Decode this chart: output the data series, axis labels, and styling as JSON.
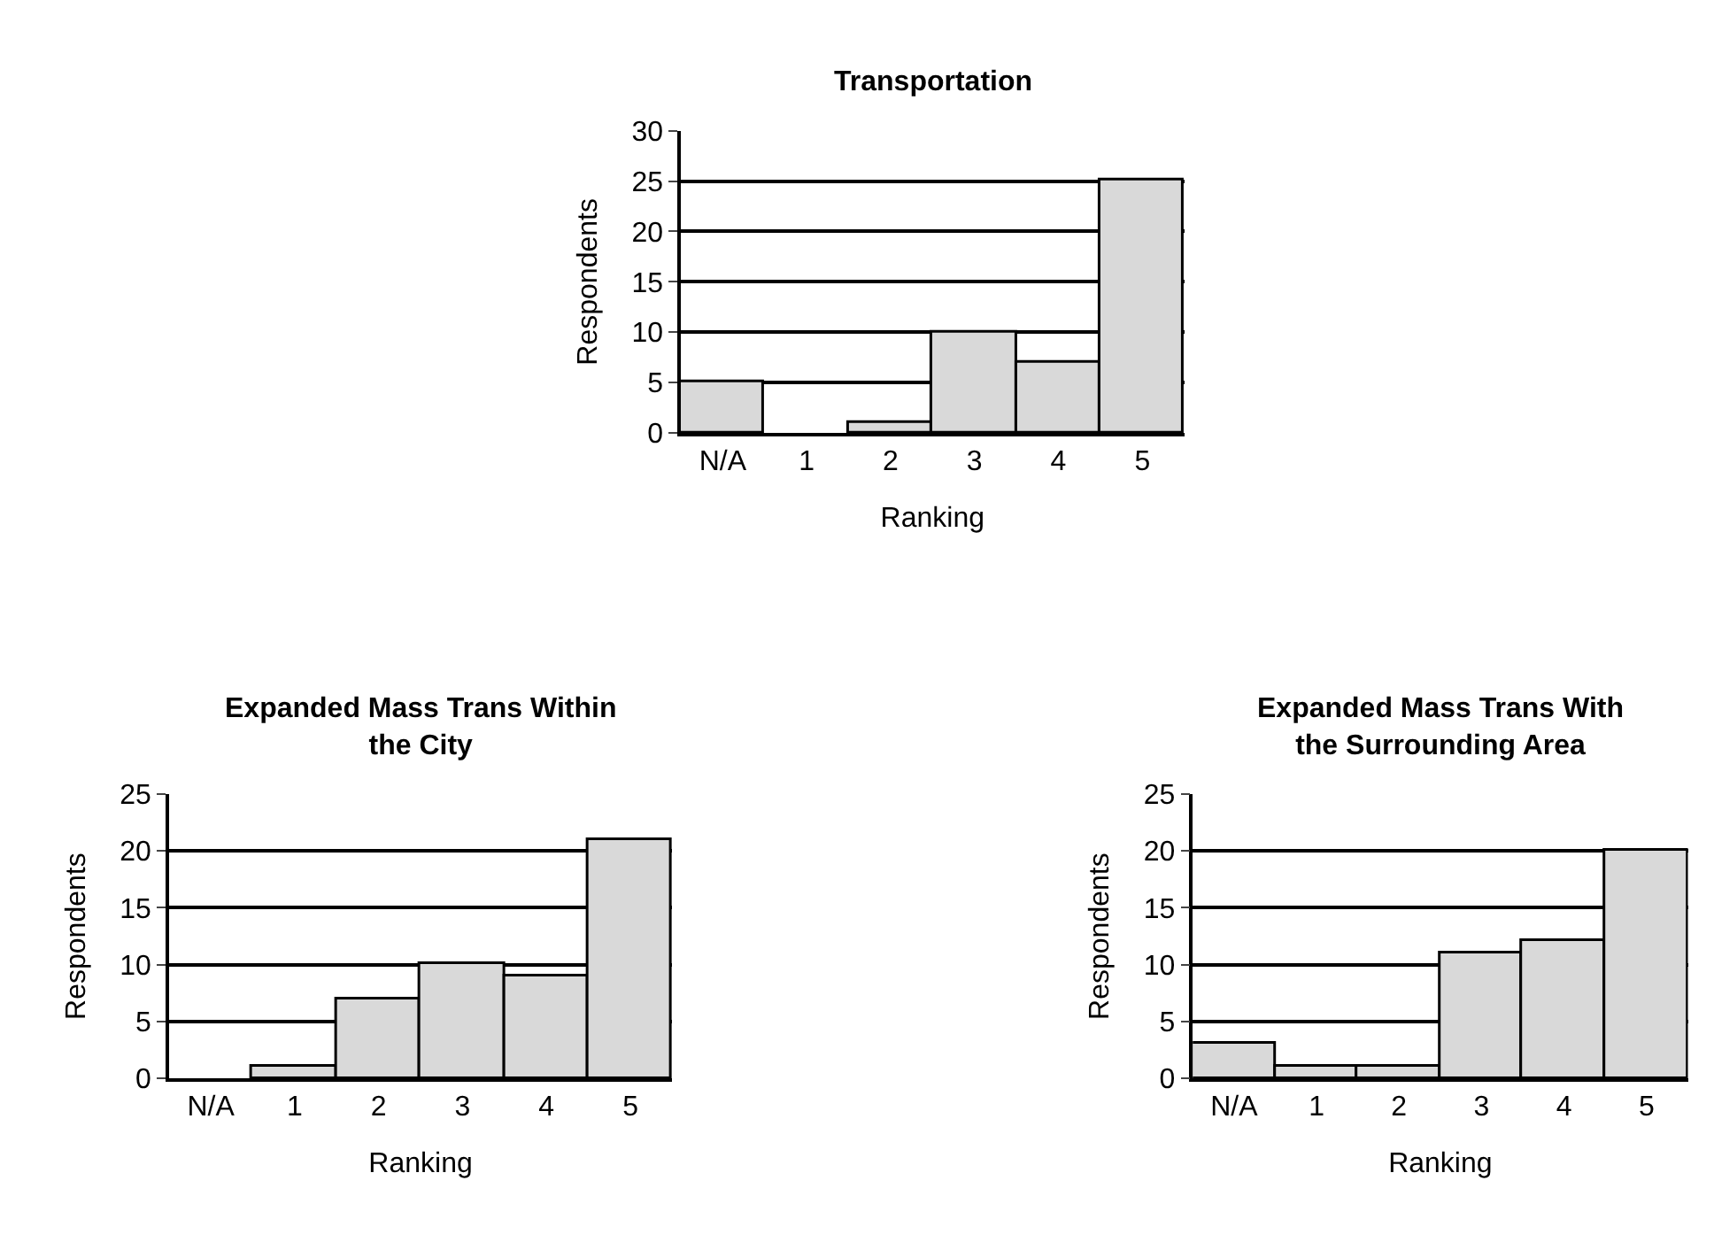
{
  "chart_data": [
    {
      "type": "bar",
      "title": "Transportation",
      "xlabel": "Ranking",
      "ylabel": "Respondents",
      "categories": [
        "N/A",
        "1",
        "2",
        "3",
        "4",
        "5"
      ],
      "values": [
        5,
        0,
        1,
        10,
        7,
        25
      ],
      "color": "#d9d9d9",
      "ylim": [
        0,
        30
      ],
      "yticks": [
        0,
        5,
        10,
        15,
        20,
        25,
        30
      ],
      "grid": "y"
    },
    {
      "type": "bar",
      "title": "Expanded Mass Trans Within the City",
      "xlabel": "Ranking",
      "ylabel": "Respondents",
      "categories": [
        "N/A",
        "1",
        "2",
        "3",
        "4",
        "5"
      ],
      "values": [
        0,
        1,
        7,
        10,
        9,
        21
      ],
      "color": "#d9d9d9",
      "ylim": [
        0,
        25
      ],
      "yticks": [
        0,
        5,
        10,
        15,
        20,
        25
      ],
      "grid": "y"
    },
    {
      "type": "bar",
      "title": "Expanded Mass Trans With the Surrounding Area",
      "xlabel": "Ranking",
      "ylabel": "Respondents",
      "categories": [
        "N/A",
        "1",
        "2",
        "3",
        "4",
        "5"
      ],
      "values": [
        3,
        1,
        1,
        11,
        12,
        20
      ],
      "color": "#d9d9d9",
      "ylim": [
        0,
        25
      ],
      "yticks": [
        0,
        5,
        10,
        15,
        20,
        25
      ],
      "grid": "y"
    }
  ]
}
